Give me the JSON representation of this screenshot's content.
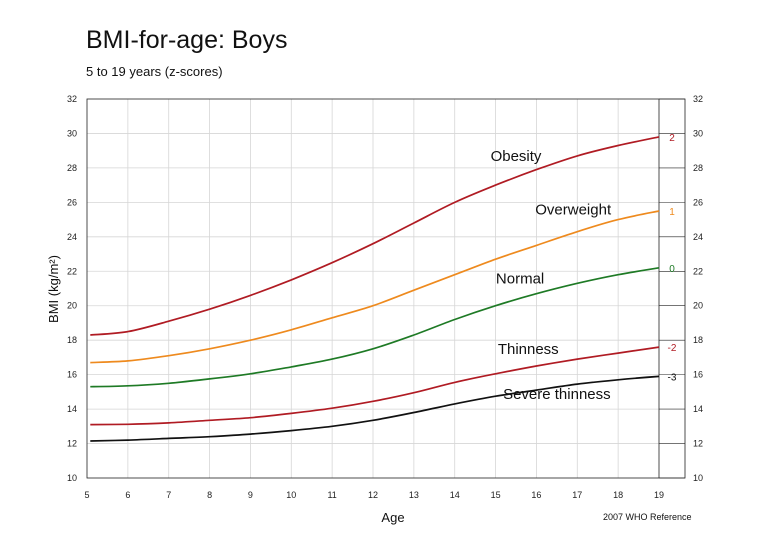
{
  "chart_data": {
    "type": "line",
    "title": "BMI-for-age: Boys",
    "subtitle": "5 to 19 years (z-scores)",
    "xlabel": "Age",
    "ylabel": "BMI (kg/m²)",
    "source": "2007 WHO Reference",
    "xlim": [
      5,
      19
    ],
    "ylim": [
      10,
      32
    ],
    "x_ticks": [
      5,
      6,
      7,
      8,
      9,
      10,
      11,
      12,
      13,
      14,
      15,
      16,
      17,
      18,
      19
    ],
    "y_ticks": [
      10,
      12,
      14,
      16,
      18,
      20,
      22,
      24,
      26,
      28,
      30,
      32
    ],
    "grid": true,
    "x": [
      5.08,
      6,
      7,
      8,
      9,
      10,
      11,
      12,
      13,
      14,
      15,
      16,
      17,
      18,
      19
    ],
    "series": [
      {
        "z": "2",
        "color": "#b01b23",
        "values": [
          18.3,
          18.5,
          19.1,
          19.8,
          20.6,
          21.5,
          22.5,
          23.6,
          24.8,
          26.0,
          27.0,
          27.9,
          28.7,
          29.3,
          29.8
        ]
      },
      {
        "z": "1",
        "color": "#ee8a1e",
        "values": [
          16.7,
          16.8,
          17.1,
          17.5,
          18.0,
          18.6,
          19.3,
          20.0,
          20.9,
          21.8,
          22.7,
          23.5,
          24.3,
          25.0,
          25.5
        ]
      },
      {
        "z": "0",
        "color": "#1e7a25",
        "values": [
          15.3,
          15.35,
          15.5,
          15.75,
          16.05,
          16.45,
          16.9,
          17.5,
          18.3,
          19.2,
          20.0,
          20.7,
          21.3,
          21.8,
          22.2
        ]
      },
      {
        "z": "-2",
        "color": "#b01b23",
        "values": [
          13.1,
          13.12,
          13.2,
          13.35,
          13.5,
          13.75,
          14.05,
          14.45,
          14.95,
          15.55,
          16.05,
          16.5,
          16.9,
          17.25,
          17.6
        ]
      },
      {
        "z": "-3",
        "color": "#111111",
        "values": [
          12.15,
          12.2,
          12.3,
          12.4,
          12.55,
          12.75,
          13.0,
          13.35,
          13.8,
          14.3,
          14.75,
          15.1,
          15.45,
          15.7,
          15.9
        ]
      }
    ],
    "band_labels": [
      {
        "text": "Obesity",
        "x": 15.5,
        "y": 28.4
      },
      {
        "text": "Overweight",
        "x": 16.9,
        "y": 25.3
      },
      {
        "text": "Normal",
        "x": 15.6,
        "y": 21.3
      },
      {
        "text": "Thinness",
        "x": 15.8,
        "y": 17.2
      },
      {
        "text": "Severe thinness",
        "x": 16.5,
        "y": 14.6
      }
    ]
  }
}
